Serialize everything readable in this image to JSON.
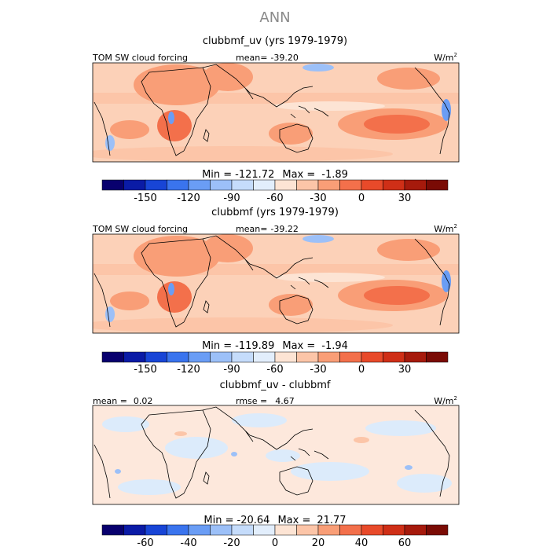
{
  "chart_data": [
    {
      "type": "heatmap",
      "season": "ANN",
      "title": "clubbmf_uv (yrs 1979-1979)",
      "variable": "TOM SW cloud forcing",
      "units": "W/m",
      "units_exp": "2",
      "stat_label": "mean=",
      "stat_value": "-39.20",
      "min_label": "Min =",
      "min_value": "-121.72",
      "max_label": "Max =",
      "max_value": "-1.89",
      "colorbar_levels": [
        -180,
        -165,
        -150,
        -135,
        -120,
        -105,
        -90,
        -75,
        -60,
        -45,
        -30,
        -15,
        0,
        15,
        30,
        45,
        60
      ],
      "colorbar_ticks": [
        "-150",
        "-120",
        "-90",
        "-60",
        "-30",
        "0",
        "30"
      ]
    },
    {
      "type": "heatmap",
      "title": "clubbmf (yrs 1979-1979)",
      "variable": "TOM SW cloud forcing",
      "units": "W/m",
      "units_exp": "2",
      "stat_label": "mean=",
      "stat_value": "-39.22",
      "min_label": "Min =",
      "min_value": "-119.89",
      "max_label": "Max =",
      "max_value": "-1.94",
      "colorbar_levels": [
        -180,
        -165,
        -150,
        -135,
        -120,
        -105,
        -90,
        -75,
        -60,
        -45,
        -30,
        -15,
        0,
        15,
        30,
        45,
        60
      ],
      "colorbar_ticks": [
        "-150",
        "-120",
        "-90",
        "-60",
        "-30",
        "0",
        "30"
      ]
    },
    {
      "type": "heatmap",
      "title": "clubbmf_uv - clubbmf",
      "mean_label": "mean =",
      "mean_value": "0.02",
      "rmse_label": "rmse =",
      "rmse_value": "4.67",
      "units": "W/m",
      "units_exp": "2",
      "min_label": "Min =",
      "min_value": "-20.64",
      "max_label": "Max =",
      "max_value": "21.77",
      "colorbar_levels": [
        -80,
        -70,
        -60,
        -50,
        -40,
        -30,
        -20,
        -10,
        0,
        10,
        20,
        30,
        40,
        50,
        60,
        70,
        80
      ],
      "colorbar_ticks": [
        "-60",
        "-40",
        "-20",
        "0",
        "20",
        "40",
        "60"
      ]
    }
  ],
  "colors": {
    "scale": [
      "#08006e",
      "#0a1ba6",
      "#1845d6",
      "#3a74ee",
      "#6a9df5",
      "#9cc0f8",
      "#c5dcfb",
      "#e2eefc",
      "#fde4d4",
      "#fcc5a8",
      "#f99e77",
      "#f3704b",
      "#e84a2a",
      "#cf2f17",
      "#a61a0c",
      "#7a0b05"
    ],
    "ocean_base": "#fcd1b8",
    "diff_base": "#fde8dc",
    "diff_ocean": "#dcebfb"
  }
}
